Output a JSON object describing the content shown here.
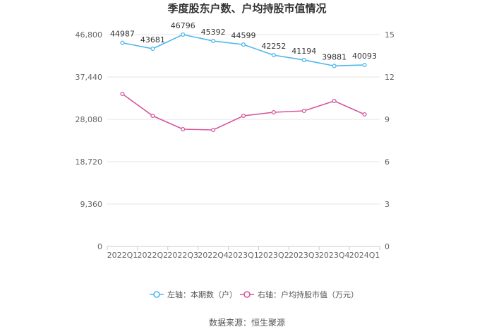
{
  "chart_data": {
    "type": "line",
    "title": "季度股东户数、户均持股市值情况",
    "categories": [
      "2022Q1",
      "2022Q2",
      "2022Q3",
      "2022Q4",
      "2023Q1",
      "2023Q2",
      "2023Q3",
      "2023Q4",
      "2024Q1"
    ],
    "left_axis": {
      "ylim": [
        0,
        46800
      ],
      "ticks": [
        "0",
        "9,360",
        "18,720",
        "28,080",
        "37,440",
        "46,800"
      ]
    },
    "right_axis": {
      "ylim": [
        0,
        15
      ],
      "ticks": [
        "0",
        "3",
        "6",
        "9",
        "12",
        "15"
      ]
    },
    "grid": true,
    "legend_position": "bottom-center",
    "series": [
      {
        "name": "左轴：本期数（户）",
        "axis": "left",
        "color": "#4db8ec",
        "values": [
          44987,
          43681,
          46796,
          45392,
          44599,
          42252,
          41194,
          39881,
          40093
        ],
        "labels": [
          "44987",
          "43681",
          "46796",
          "45392",
          "44599",
          "42252",
          "41194",
          "39881",
          "40093"
        ]
      },
      {
        "name": "右轴：户均持股市值（万元）",
        "axis": "right",
        "color": "#d4569e",
        "values": [
          10.8,
          9.25,
          8.3,
          8.25,
          9.25,
          9.5,
          9.6,
          10.3,
          9.35
        ]
      }
    ],
    "source": "数据来源：恒生聚源"
  }
}
